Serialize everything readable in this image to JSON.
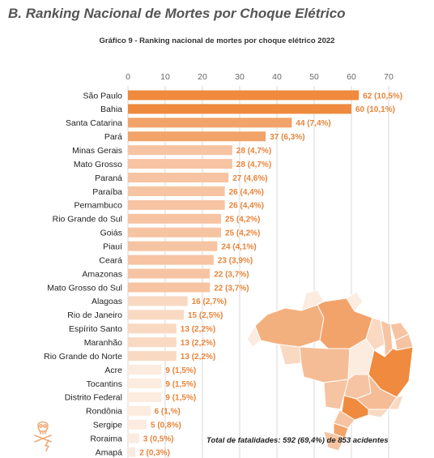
{
  "section_title": "B. Ranking Nacional de Mortes por Choque Elétrico",
  "chart_data": {
    "type": "bar",
    "orientation": "horizontal",
    "title": "Gráfico 9 - Ranking nacional de mortes por choque elétrico 2022",
    "xlim": [
      0,
      70
    ],
    "x_ticks": [
      "0",
      "10",
      "20",
      "30",
      "40",
      "50",
      "60",
      "70"
    ],
    "grid": true,
    "categories": [
      "São Paulo",
      "Bahia",
      "Santa Catarina",
      "Pará",
      "Minas Gerais",
      "Mato Grosso",
      "Paraná",
      "Paraíba",
      "Pernambuco",
      "Rio Grande do Sul",
      "Goiás",
      "Piauí",
      "Ceará",
      "Amazonas",
      "Mato Grosso do Sul",
      "Alagoas",
      "Rio de Janeiro",
      "Espírito Santo",
      "Maranhão",
      "Rio Grande do Norte",
      "Acre",
      "Tocantins",
      "Distrito Federal",
      "Rondônia",
      "Sergipe",
      "Roraima",
      "Amapá"
    ],
    "values": [
      62,
      60,
      44,
      37,
      28,
      28,
      27,
      26,
      26,
      25,
      25,
      24,
      23,
      22,
      22,
      16,
      15,
      13,
      13,
      13,
      9,
      9,
      9,
      6,
      5,
      3,
      2
    ],
    "data_labels": [
      "62 (10,5%)",
      "60 (10,1%)",
      "44 (7,4%)",
      "37 (6,3%)",
      "28 (4,7%)",
      "28 (4,7%)",
      "27 (4,6%)",
      "26 (4,4%)",
      "26 (4,4%)",
      "25 (4,2%)",
      "25 (4,2%)",
      "24 (4,1%)",
      "23 (3,9%)",
      "22 (3,7%)",
      "22 (3,7%)",
      "16 (2,7%)",
      "15 (2,5%)",
      "13 (2,2%)",
      "13 (2,2%)",
      "13 (2,2%)",
      "9 (1,5%)",
      "9 (1,5%)",
      "9 (1,5%)",
      "6 (1,%)",
      "5 (0,8%)",
      "3 (0,5%)",
      "2 (0,3%)"
    ],
    "colors": {
      "darkest": "#ef8a3e",
      "dark": "#f2a36a",
      "medium": "#f6c4a2",
      "light": "#f9d9c2",
      "lightest": "#fcebdf",
      "label": "#e8843a",
      "grid": "#d9d9d9",
      "category_text": "#222222",
      "tick_text": "#666666"
    }
  },
  "footer": {
    "label": "Total de fatalidades:",
    "value": "592 (69,4%) de 853 acidentes"
  },
  "decorations": {
    "map": "brazil-choropleth-map",
    "corner_icon": "skull-lightning-icon"
  }
}
